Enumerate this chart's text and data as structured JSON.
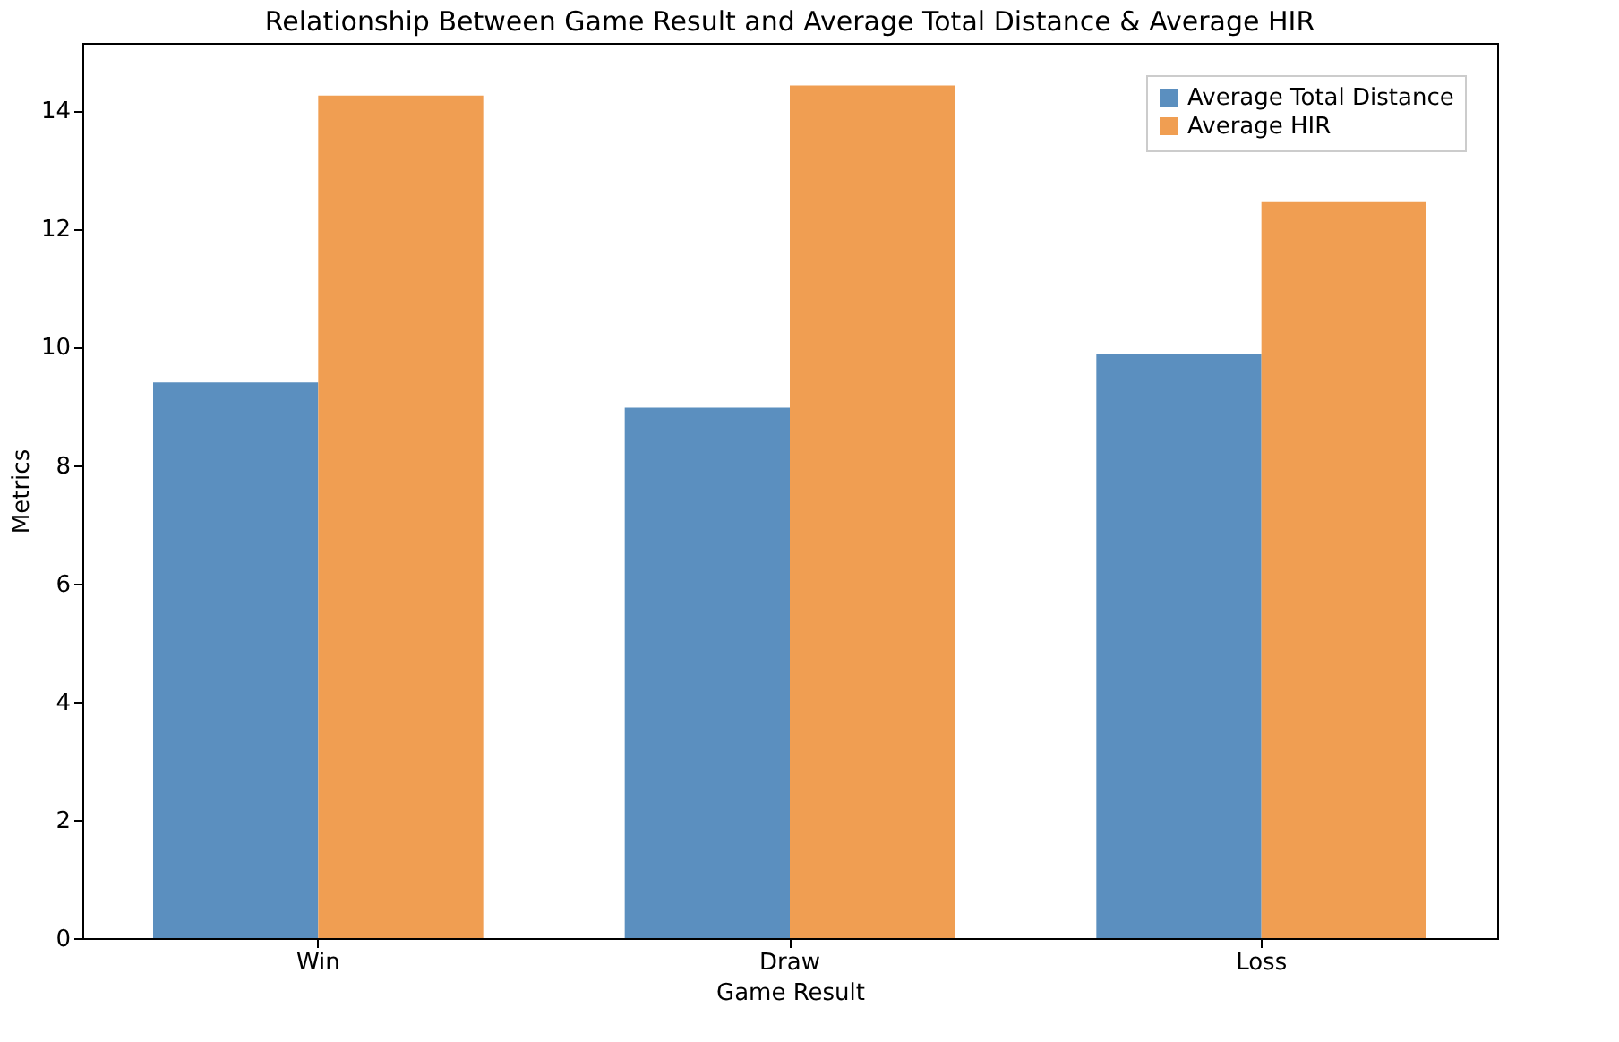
{
  "chart_data": {
    "type": "bar",
    "title": "Relationship Between Game Result and Average Total Distance & Average HIR",
    "xlabel": "Game Result",
    "ylabel": "Metrics",
    "categories": [
      "Win",
      "Draw",
      "Loss"
    ],
    "series": [
      {
        "name": "Average Total Distance",
        "color": "#5b8fbf",
        "values": [
          9.4,
          8.97,
          9.87
        ]
      },
      {
        "name": "Average HIR",
        "color": "#f09e52",
        "values": [
          14.25,
          14.42,
          12.45
        ]
      }
    ],
    "ylim": [
      0,
      15.14
    ],
    "yticks": [
      0,
      2,
      4,
      6,
      8,
      10,
      12,
      14
    ],
    "grid": false,
    "legend": "top right"
  }
}
